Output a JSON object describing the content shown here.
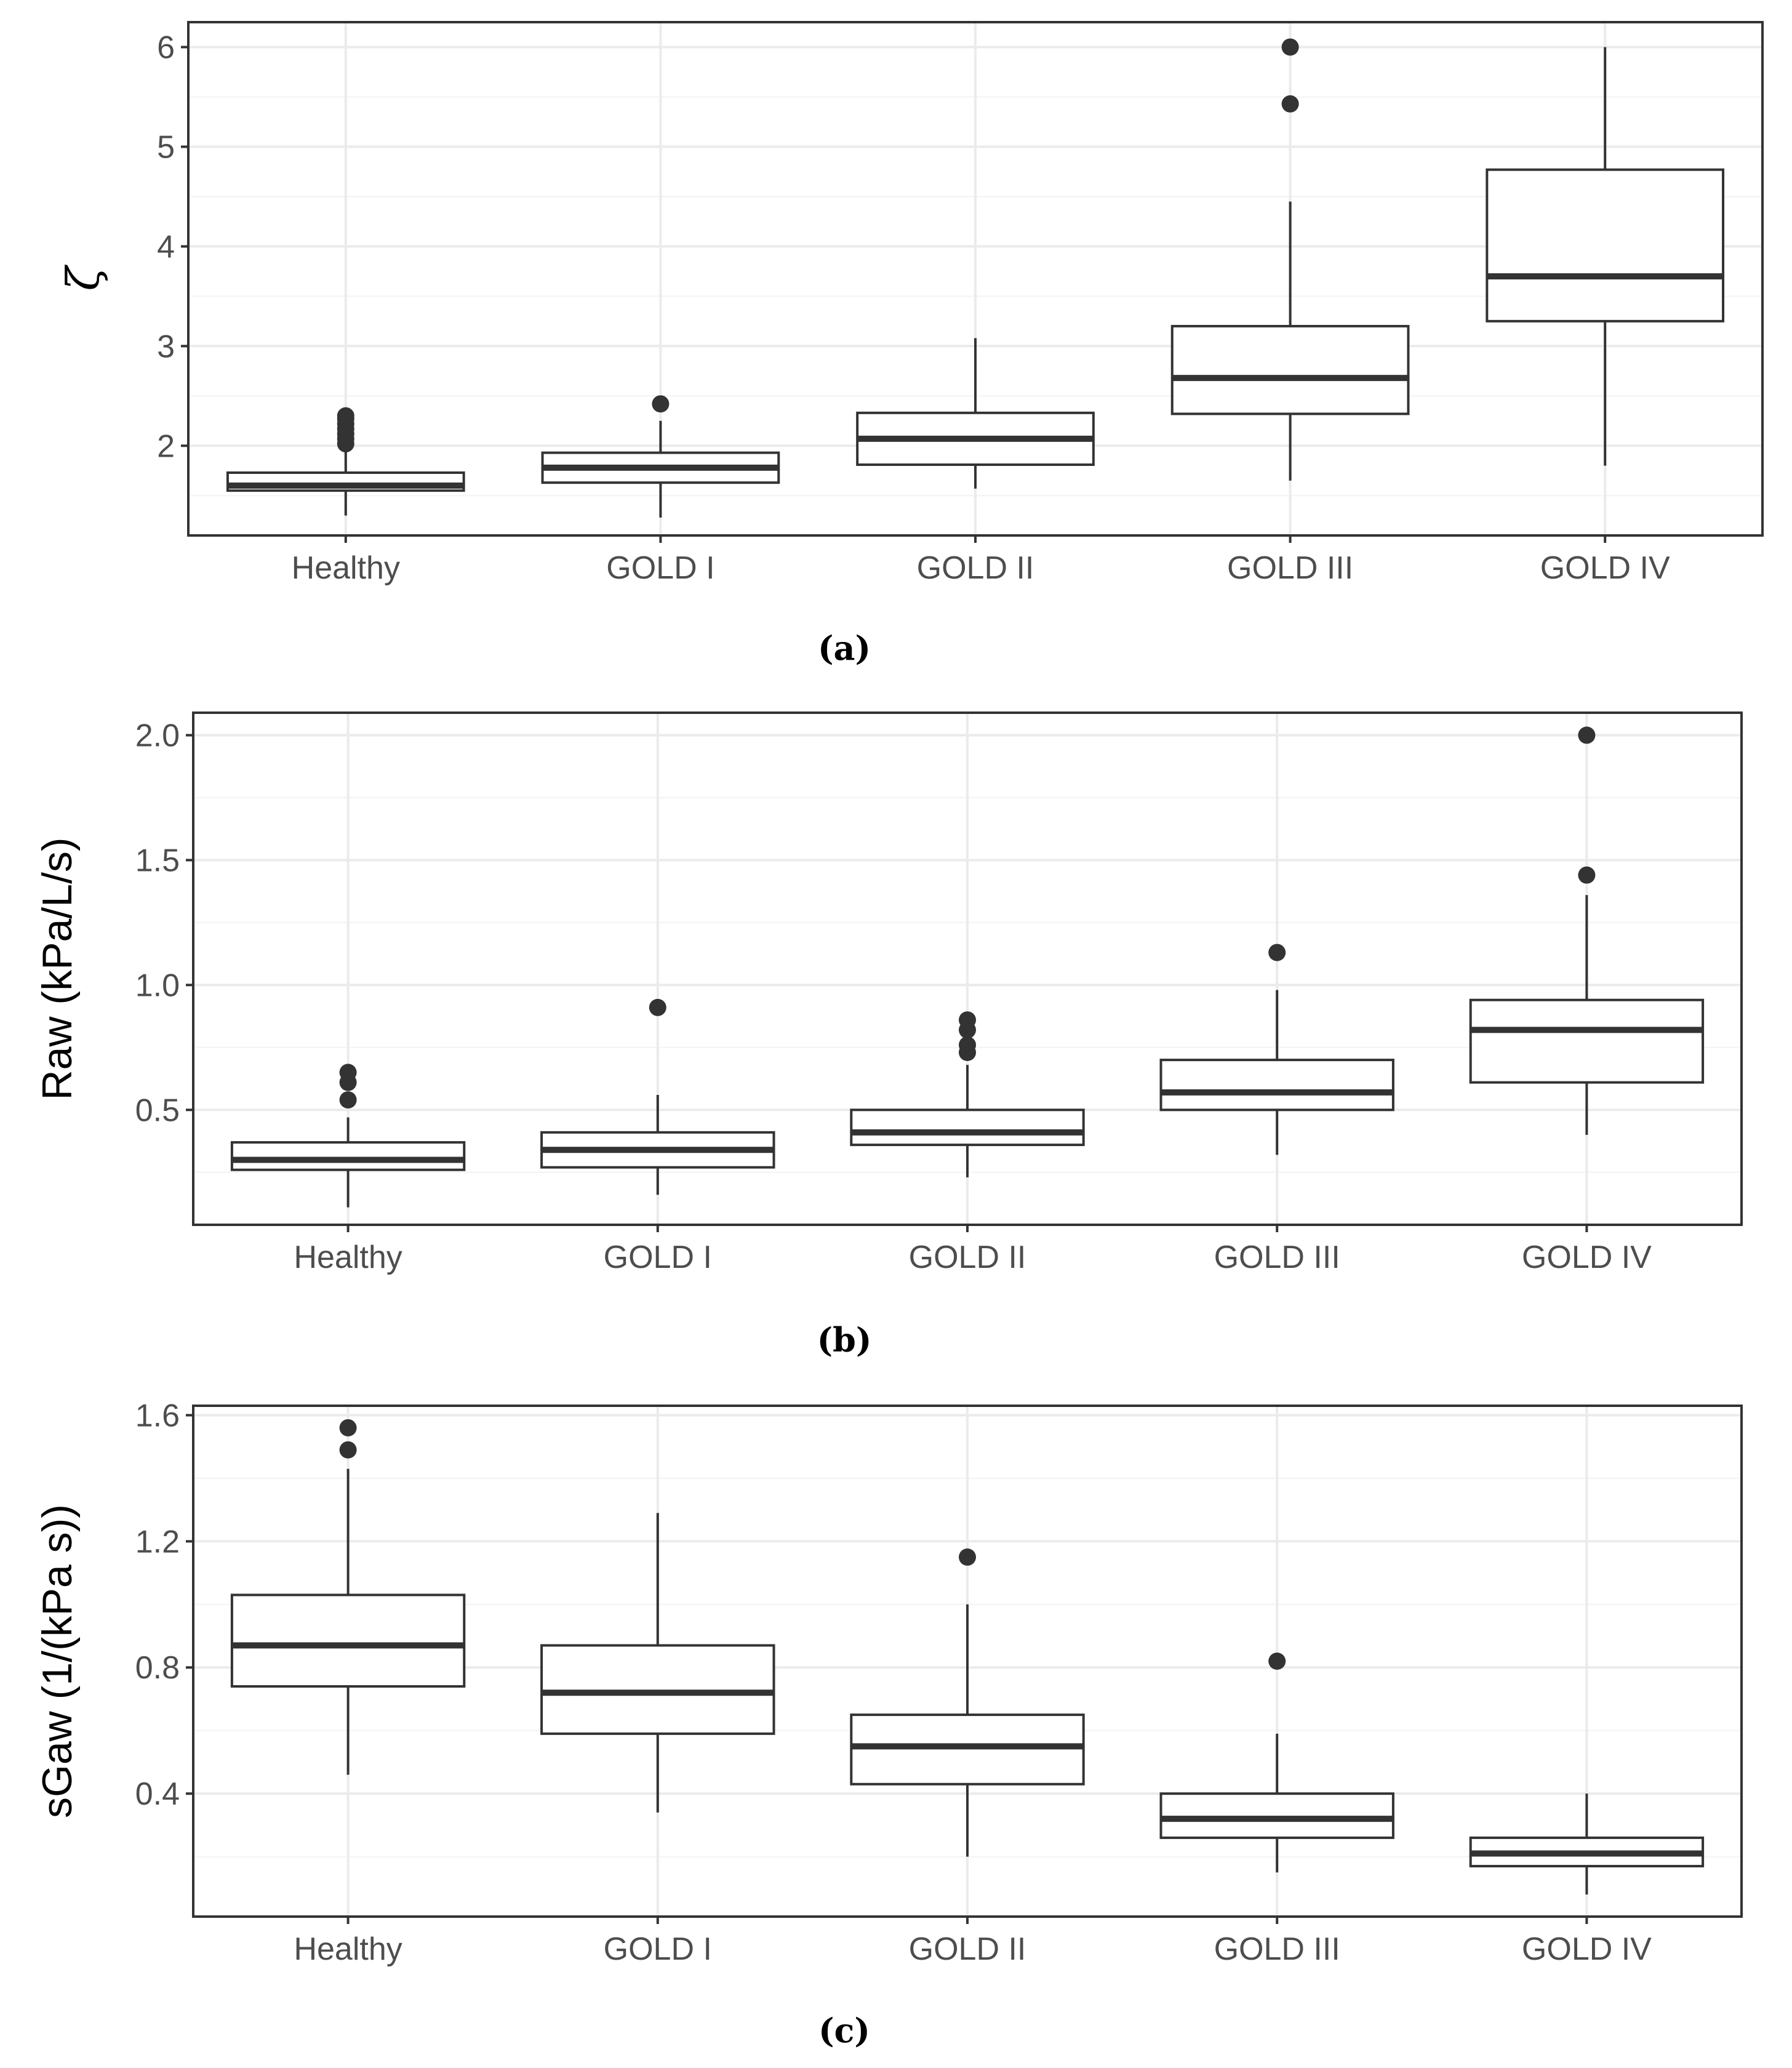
{
  "chart_data": [
    {
      "type": "box",
      "caption": "(a)",
      "title": "",
      "xlabel": "",
      "ylabel": "ζ",
      "categories": [
        "Healthy",
        "GOLD I",
        "GOLD II",
        "GOLD III",
        "GOLD IV"
      ],
      "ylim": [
        1.1,
        6.25
      ],
      "yticks": [
        2,
        3,
        4,
        5,
        6
      ],
      "ytick_labels": [
        "2",
        "3",
        "4",
        "5",
        "6"
      ],
      "grid": true,
      "boxes": [
        {
          "whisker_low": 1.3,
          "q1": 1.55,
          "median": 1.6,
          "q3": 1.73,
          "whisker_high": 1.98,
          "outliers": [
            2.02,
            2.07,
            2.12,
            2.17,
            2.22,
            2.27,
            2.3
          ]
        },
        {
          "whisker_low": 1.28,
          "q1": 1.63,
          "median": 1.78,
          "q3": 1.93,
          "whisker_high": 2.25,
          "outliers": [
            2.42
          ]
        },
        {
          "whisker_low": 1.57,
          "q1": 1.81,
          "median": 2.07,
          "q3": 2.33,
          "whisker_high": 3.08,
          "outliers": []
        },
        {
          "whisker_low": 1.65,
          "q1": 2.32,
          "median": 2.68,
          "q3": 3.2,
          "whisker_high": 4.45,
          "outliers": [
            5.43,
            6.0
          ]
        },
        {
          "whisker_low": 1.8,
          "q1": 3.25,
          "median": 3.7,
          "q3": 4.77,
          "whisker_high": 6.0,
          "outliers": []
        }
      ]
    },
    {
      "type": "box",
      "caption": "(b)",
      "title": "",
      "xlabel": "",
      "ylabel": "Raw (kPa/L/s)",
      "categories": [
        "Healthy",
        "GOLD I",
        "GOLD II",
        "GOLD III",
        "GOLD IV"
      ],
      "ylim": [
        0.04,
        2.09
      ],
      "yticks": [
        0.5,
        1.0,
        1.5,
        2.0
      ],
      "ytick_labels": [
        "0.5",
        "1.0",
        "1.5",
        "2.0"
      ],
      "grid": true,
      "boxes": [
        {
          "whisker_low": 0.11,
          "q1": 0.26,
          "median": 0.3,
          "q3": 0.37,
          "whisker_high": 0.47,
          "outliers": [
            0.54,
            0.61,
            0.65
          ]
        },
        {
          "whisker_low": 0.16,
          "q1": 0.27,
          "median": 0.34,
          "q3": 0.41,
          "whisker_high": 0.56,
          "outliers": [
            0.91
          ]
        },
        {
          "whisker_low": 0.23,
          "q1": 0.36,
          "median": 0.41,
          "q3": 0.5,
          "whisker_high": 0.68,
          "outliers": [
            0.73,
            0.76,
            0.82,
            0.86
          ]
        },
        {
          "whisker_low": 0.32,
          "q1": 0.5,
          "median": 0.57,
          "q3": 0.7,
          "whisker_high": 0.98,
          "outliers": [
            1.13
          ]
        },
        {
          "whisker_low": 0.4,
          "q1": 0.61,
          "median": 0.82,
          "q3": 0.94,
          "whisker_high": 1.36,
          "outliers": [
            1.44,
            2.0
          ]
        }
      ]
    },
    {
      "type": "box",
      "caption": "(c)",
      "title": "",
      "xlabel": "",
      "ylabel": "sGaw (1/(kPa s))",
      "categories": [
        "Healthy",
        "GOLD I",
        "GOLD II",
        "GOLD III",
        "GOLD IV"
      ],
      "ylim": [
        0.01,
        1.63
      ],
      "yticks": [
        0.4,
        0.8,
        1.2,
        1.6
      ],
      "ytick_labels": [
        "0.4",
        "0.8",
        "1.2",
        "1.6"
      ],
      "grid": true,
      "boxes": [
        {
          "whisker_low": 0.46,
          "q1": 0.74,
          "median": 0.87,
          "q3": 1.03,
          "whisker_high": 1.43,
          "outliers": [
            1.49,
            1.56
          ]
        },
        {
          "whisker_low": 0.34,
          "q1": 0.59,
          "median": 0.72,
          "q3": 0.87,
          "whisker_high": 1.29,
          "outliers": []
        },
        {
          "whisker_low": 0.2,
          "q1": 0.43,
          "median": 0.55,
          "q3": 0.65,
          "whisker_high": 1.0,
          "outliers": [
            1.15
          ]
        },
        {
          "whisker_low": 0.15,
          "q1": 0.26,
          "median": 0.32,
          "q3": 0.4,
          "whisker_high": 0.59,
          "outliers": [
            0.82
          ]
        },
        {
          "whisker_low": 0.08,
          "q1": 0.17,
          "median": 0.21,
          "q3": 0.26,
          "whisker_high": 0.4,
          "outliers": []
        }
      ]
    }
  ]
}
